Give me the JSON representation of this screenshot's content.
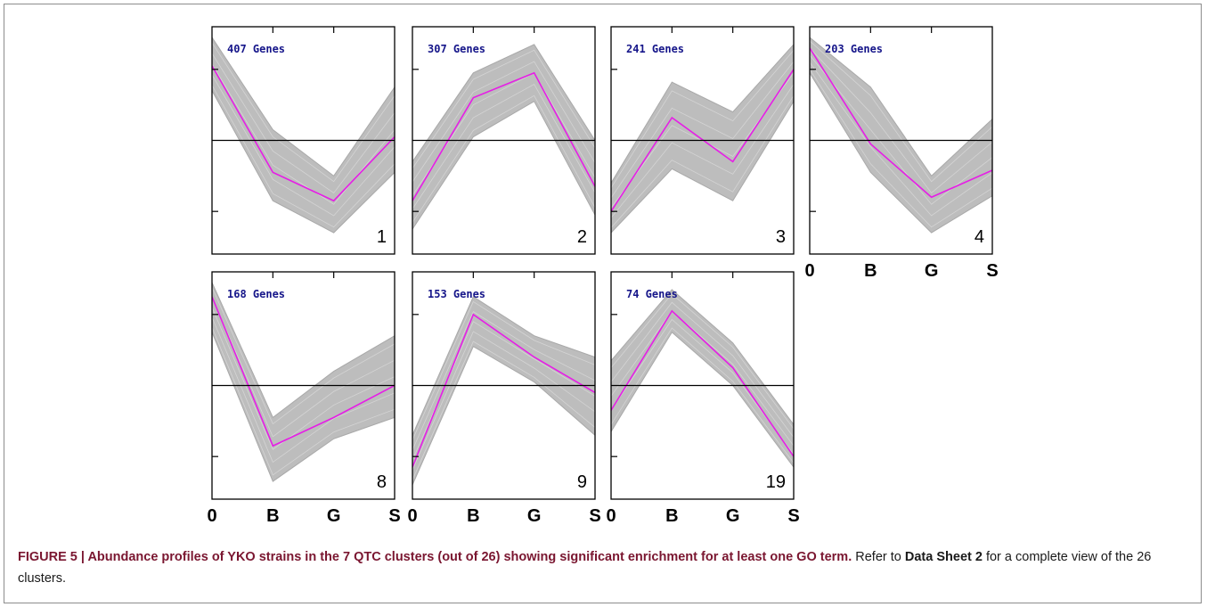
{
  "chart_data": [
    {
      "type": "line",
      "panel_label": "1",
      "count_label": "407 Genes",
      "categories": [
        "0",
        "B",
        "G",
        "S"
      ],
      "ylim": [
        -1.6,
        1.6
      ],
      "ticks": [
        -1,
        0,
        1
      ],
      "mean": [
        1.05,
        -0.45,
        -0.85,
        0.05
      ],
      "band_upper": [
        1.45,
        0.15,
        -0.5,
        0.75
      ],
      "band_lower": [
        0.7,
        -0.85,
        -1.3,
        -0.45
      ]
    },
    {
      "type": "line",
      "panel_label": "2",
      "count_label": "307 Genes",
      "categories": [
        "0",
        "B",
        "G",
        "S"
      ],
      "ylim": [
        -1.6,
        1.6
      ],
      "ticks": [
        -1,
        0,
        1
      ],
      "mean": [
        -0.85,
        0.6,
        0.95,
        -0.65
      ],
      "band_upper": [
        -0.3,
        0.95,
        1.35,
        0.0
      ],
      "band_lower": [
        -1.25,
        0.05,
        0.55,
        -1.05
      ]
    },
    {
      "type": "line",
      "panel_label": "3",
      "count_label": "241 Genes",
      "categories": [
        "0",
        "B",
        "G",
        "S"
      ],
      "ylim": [
        -1.6,
        1.6
      ],
      "ticks": [
        -1,
        0,
        1
      ],
      "mean": [
        -1.0,
        0.32,
        -0.3,
        1.0
      ],
      "band_upper": [
        -0.6,
        0.82,
        0.4,
        1.35
      ],
      "band_lower": [
        -1.3,
        -0.4,
        -0.85,
        0.55
      ]
    },
    {
      "type": "line",
      "panel_label": "4",
      "count_label": "203 Genes",
      "categories": [
        "0",
        "B",
        "G",
        "S"
      ],
      "ylim": [
        -1.6,
        1.6
      ],
      "ticks": [
        -1,
        0,
        1
      ],
      "mean": [
        1.3,
        -0.05,
        -0.8,
        -0.42
      ],
      "band_upper": [
        1.45,
        0.75,
        -0.5,
        0.3
      ],
      "band_lower": [
        0.95,
        -0.45,
        -1.3,
        -0.78
      ]
    },
    {
      "type": "line",
      "panel_label": "8",
      "count_label": "168 Genes",
      "categories": [
        "0",
        "B",
        "G",
        "S"
      ],
      "ylim": [
        -1.6,
        1.6
      ],
      "ticks": [
        -1,
        0,
        1
      ],
      "mean": [
        1.25,
        -0.85,
        -0.45,
        0.0
      ],
      "band_upper": [
        1.45,
        -0.45,
        0.2,
        0.7
      ],
      "band_lower": [
        0.75,
        -1.35,
        -0.75,
        -0.45
      ]
    },
    {
      "type": "line",
      "panel_label": "9",
      "count_label": "153 Genes",
      "categories": [
        "0",
        "B",
        "G",
        "S"
      ],
      "ylim": [
        -1.6,
        1.6
      ],
      "ticks": [
        -1,
        0,
        1
      ],
      "mean": [
        -1.15,
        1.0,
        0.4,
        -0.1
      ],
      "band_upper": [
        -0.7,
        1.25,
        0.7,
        0.4
      ],
      "band_lower": [
        -1.4,
        0.55,
        0.05,
        -0.7
      ]
    },
    {
      "type": "line",
      "panel_label": "19",
      "count_label": "74 Genes",
      "categories": [
        "0",
        "B",
        "G",
        "S"
      ],
      "ylim": [
        -1.6,
        1.6
      ],
      "ticks": [
        -1,
        0,
        1
      ],
      "mean": [
        -0.35,
        1.05,
        0.25,
        -1.0
      ],
      "band_upper": [
        0.35,
        1.35,
        0.6,
        -0.55
      ],
      "band_lower": [
        -0.65,
        0.75,
        0.0,
        -1.15
      ]
    }
  ],
  "colors": {
    "band": "#bdbdbd",
    "band_line": "#a9a9a9",
    "mean": "#e61ee6",
    "zero_line": "#000000",
    "count_text": "#16168a"
  },
  "caption": {
    "figure_label": "FIGURE 5 | Abundance profiles of YKO strains in the 7 QTC clusters (out of 26) showing significant enrichment for at least one GO term.",
    "text_before": "Refer to",
    "data_sheet": "Data Sheet 2",
    "text_after": "for a complete view of the 26 clusters."
  }
}
